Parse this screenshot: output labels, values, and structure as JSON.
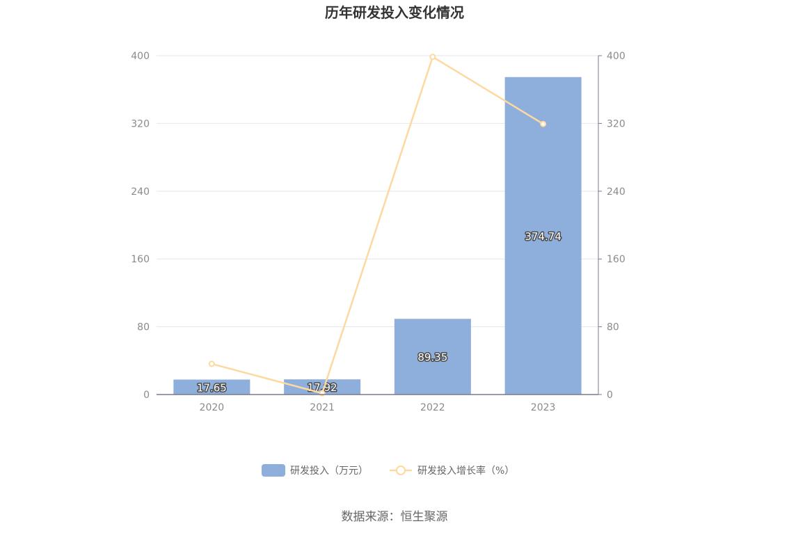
{
  "chart_data": {
    "type": "bar",
    "title": "历年研发投入变化情况",
    "categories": [
      "2020",
      "2021",
      "2022",
      "2023"
    ],
    "series": [
      {
        "name": "研发投入（万元）",
        "type": "bar",
        "axis": "left",
        "values": [
          17.65,
          17.92,
          89.35,
          374.74
        ],
        "labels": [
          "17.65",
          "17.92",
          "89.35",
          "374.74"
        ]
      },
      {
        "name": "研发投入增长率（%）",
        "type": "line",
        "axis": "right",
        "values": [
          36.2,
          1.53,
          398.6,
          319.4
        ]
      }
    ],
    "y_left": {
      "min": 0,
      "max": 400,
      "ticks": [
        "0",
        "80",
        "160",
        "240",
        "320",
        "400"
      ]
    },
    "y_right": {
      "min": 0,
      "max": 400,
      "ticks": [
        "0",
        "80",
        "160",
        "240",
        "320",
        "400"
      ]
    },
    "grid": true,
    "legend_position": "bottom",
    "colors": {
      "bar": "#8eaedb",
      "line": "#fdd9a0",
      "grid": "#e3e6f0",
      "axis": "#7a7a8c"
    }
  },
  "source_text": "数据来源：恒生聚源"
}
